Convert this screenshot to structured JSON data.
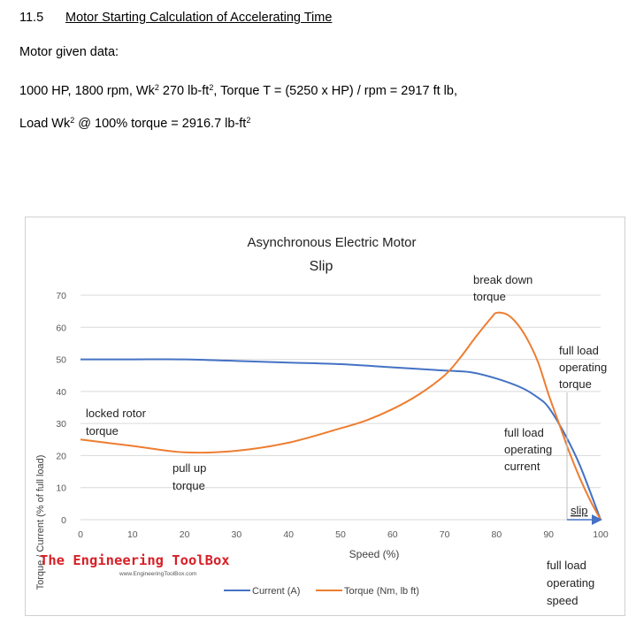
{
  "document": {
    "section_number": "11.5",
    "section_title": "Motor Starting Calculation of Accelerating Time",
    "given_heading": "Motor given data:",
    "line1_a": "1000 HP, 1800 rpm, Wk",
    "line1_sup": "2",
    "line1_b": " 270 lb-ft",
    "line1_sup2": "2",
    "line1_c": ", Torque T = (5250 x HP) / rpm = 2917 ft lb,",
    "line2_a": "Load Wk",
    "line2_sup": "2",
    "line2_b": "  @ 100% torque = 2916.7 lb-ft",
    "line2_sup2": "2"
  },
  "chart_data": {
    "type": "line",
    "title": "Asynchronous Electric Motor",
    "subtitle": "Slip",
    "xlabel": "Speed (%)",
    "ylabel": "Torque / Current (% of full load)",
    "xlim": [
      0,
      100
    ],
    "ylim": [
      0,
      70
    ],
    "x_ticks": [
      0,
      10,
      20,
      30,
      40,
      50,
      60,
      70,
      80,
      90,
      100
    ],
    "y_ticks": [
      0,
      10,
      20,
      30,
      40,
      50,
      60,
      70
    ],
    "grid": "horizontal",
    "legend_position": "bottom",
    "series": [
      {
        "name": "Current (A)",
        "color": "#4472c4",
        "x": [
          0,
          10,
          20,
          30,
          40,
          50,
          60,
          70,
          75,
          80,
          85,
          88,
          90,
          93,
          96,
          100
        ],
        "y": [
          50,
          50,
          50,
          49.5,
          49,
          48.5,
          47.5,
          46.5,
          46,
          44,
          41,
          38,
          35,
          27,
          17,
          0
        ]
      },
      {
        "name": "Torque (Nm, lb ft)",
        "color": "#ed7d31",
        "x": [
          0,
          10,
          20,
          30,
          40,
          50,
          55,
          60,
          65,
          70,
          73,
          76,
          79,
          80,
          82,
          84,
          86,
          88,
          90,
          92,
          94,
          96,
          98,
          100
        ],
        "y": [
          25,
          23,
          21,
          21.5,
          24,
          28.5,
          31,
          34.5,
          39,
          45,
          50.5,
          57,
          63,
          64.5,
          64,
          61,
          56,
          49,
          39,
          30,
          21,
          13,
          6,
          0
        ]
      }
    ],
    "annotations": {
      "break_down_1": "break down",
      "break_down_2": "torque",
      "full_load_torque_1": "full load",
      "full_load_torque_2": "operating",
      "full_load_torque_3": "torque",
      "locked_rotor_1": "locked rotor",
      "locked_rotor_2": "torque",
      "full_load_current_1": "full load",
      "full_load_current_2": "operating",
      "full_load_current_3": "current",
      "pull_up_1": "pull up",
      "pull_up_2": "torque",
      "slip": "slip",
      "full_load_speed_1": "full load",
      "full_load_speed_2": "operating",
      "full_load_speed_3": "speed"
    },
    "brand_name": "The Engineering ToolBox",
    "brand_url": "www.EngineeringToolBox.com"
  }
}
